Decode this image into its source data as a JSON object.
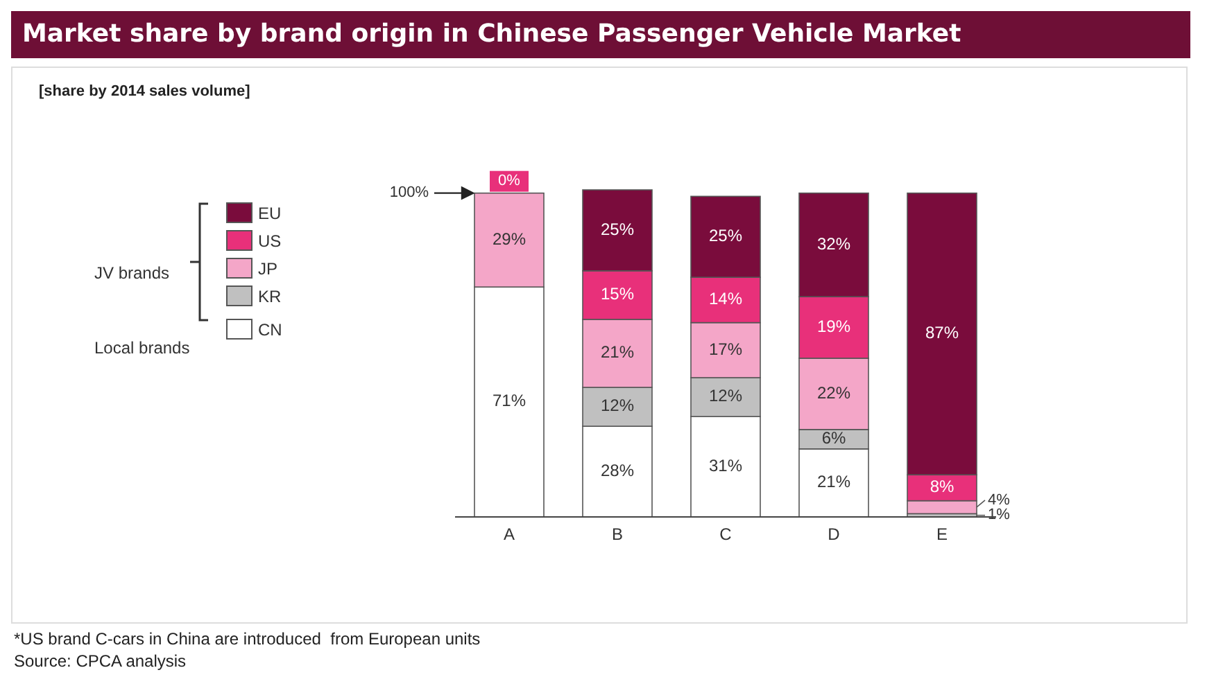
{
  "chart_data": {
    "type": "bar",
    "title": "Market share by brand origin in Chinese Passenger Vehicle Market",
    "subtitle": "[share by 2014 sales volume]",
    "stacked": true,
    "legend": "left",
    "categories": [
      "A",
      "B",
      "C",
      "D",
      "E"
    ],
    "series": [
      {
        "name": "CN",
        "color": "#ffffff",
        "values": [
          71,
          28,
          31,
          21,
          0
        ],
        "value_labels": [
          "71%",
          "28%",
          "31%",
          "21%",
          null
        ]
      },
      {
        "name": "KR",
        "color": "#c0c0c0",
        "values": [
          0,
          12,
          12,
          6,
          1
        ],
        "value_labels": [
          null,
          "12%",
          "12%",
          "6%",
          "1%"
        ]
      },
      {
        "name": "JP",
        "color": "#f4a6c8",
        "values": [
          29,
          21,
          17,
          22,
          4
        ],
        "value_labels": [
          "29%",
          "21%",
          "17%",
          "22%",
          "4%"
        ]
      },
      {
        "name": "US",
        "color": "#e8307a",
        "values": [
          0,
          15,
          14,
          19,
          8
        ],
        "value_labels": [
          "0%",
          "15%",
          "14%",
          "19%",
          "8%"
        ]
      },
      {
        "name": "EU",
        "color": "#7a0c3c",
        "values": [
          0,
          25,
          25,
          32,
          87
        ],
        "value_labels": [
          null,
          "25%",
          "25%",
          "32%",
          "87%"
        ]
      }
    ],
    "annotations": [
      "100%",
      "JV brands",
      "Local brands",
      "*US brand C-cars in China are introduced  from European units",
      "Source: CPCA analysis"
    ]
  }
}
